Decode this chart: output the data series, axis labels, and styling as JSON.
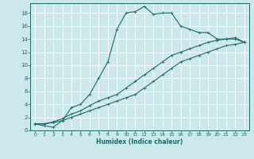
{
  "xlabel": "Humidex (Indice chaleur)",
  "bg_color": "#cce8ea",
  "grid_color": "#ffffff",
  "line_color": "#1a6b6b",
  "xlim": [
    -0.5,
    23.5
  ],
  "ylim": [
    0,
    19.5
  ],
  "xticks": [
    0,
    1,
    2,
    3,
    4,
    5,
    6,
    7,
    8,
    9,
    10,
    11,
    12,
    13,
    14,
    15,
    16,
    17,
    18,
    19,
    20,
    21,
    22,
    23
  ],
  "yticks": [
    0,
    2,
    4,
    6,
    8,
    10,
    12,
    14,
    16,
    18
  ],
  "series1_x": [
    0,
    1,
    2,
    3,
    4,
    5,
    6,
    7,
    8,
    9,
    10,
    11,
    12,
    13,
    14,
    15,
    16,
    17,
    18,
    19,
    20,
    21,
    22,
    23
  ],
  "series1_y": [
    1.0,
    0.7,
    0.5,
    1.5,
    3.5,
    4.0,
    5.5,
    8.0,
    10.5,
    15.5,
    18.0,
    18.2,
    19.0,
    17.8,
    18.0,
    18.0,
    16.0,
    15.5,
    15.0,
    15.0,
    14.0,
    14.0,
    14.0,
    13.5
  ],
  "series2_x": [
    0,
    1,
    2,
    3,
    4,
    5,
    6,
    7,
    8,
    9,
    10,
    11,
    12,
    13,
    14,
    15,
    16,
    17,
    18,
    19,
    20,
    21,
    22,
    23
  ],
  "series2_y": [
    1.0,
    1.0,
    1.2,
    1.5,
    2.0,
    2.5,
    3.0,
    3.5,
    4.0,
    4.5,
    5.0,
    5.5,
    6.5,
    7.5,
    8.5,
    9.5,
    10.5,
    11.0,
    11.5,
    12.0,
    12.5,
    13.0,
    13.2,
    13.5
  ],
  "series3_x": [
    0,
    1,
    2,
    3,
    4,
    5,
    6,
    7,
    8,
    9,
    10,
    11,
    12,
    13,
    14,
    15,
    16,
    17,
    18,
    19,
    20,
    21,
    22,
    23
  ],
  "series3_y": [
    1.0,
    1.0,
    1.3,
    1.8,
    2.5,
    3.0,
    3.8,
    4.5,
    5.0,
    5.5,
    6.5,
    7.5,
    8.5,
    9.5,
    10.5,
    11.5,
    12.0,
    12.5,
    13.0,
    13.5,
    13.8,
    14.0,
    14.2,
    13.5
  ]
}
